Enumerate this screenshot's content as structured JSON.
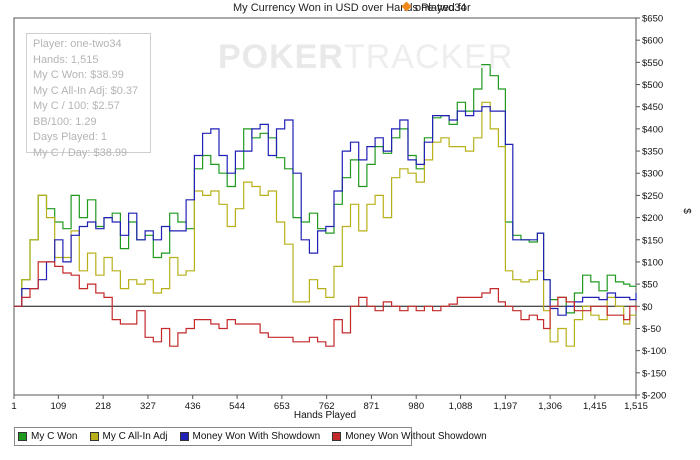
{
  "chart_data": {
    "type": "line",
    "title": "My Currency Won in USD over Hands Played for",
    "player": "one-two34",
    "xlabel": "Hands Played",
    "ylabel": "$",
    "xlim": [
      1,
      1515
    ],
    "ylim": [
      -200,
      650
    ],
    "x_ticks": [
      1,
      109,
      218,
      327,
      436,
      544,
      653,
      762,
      871,
      980,
      1088,
      1197,
      1306,
      1415,
      1515
    ],
    "x_tick_labels": [
      "1",
      "109",
      "218",
      "327",
      "436",
      "544",
      "653",
      "762",
      "871",
      "980",
      "1,088",
      "1,197",
      "1,306",
      "1,415",
      "1,515"
    ],
    "y_ticks": [
      -200,
      -150,
      -100,
      -50,
      0,
      50,
      100,
      150,
      200,
      250,
      300,
      350,
      400,
      450,
      500,
      550,
      600,
      650
    ],
    "y_tick_labels": [
      "$-200",
      "$-150",
      "$-100",
      "$-50",
      "$0",
      "$50",
      "$100",
      "$150",
      "$200",
      "$250",
      "$300",
      "$350",
      "$400",
      "$450",
      "$500",
      "$550",
      "$600",
      "$650"
    ],
    "series": [
      {
        "name": "My C Won",
        "color": "#1f9a1f",
        "x": [
          1,
          20,
          40,
          60,
          80,
          100,
          120,
          140,
          160,
          180,
          200,
          220,
          240,
          260,
          280,
          300,
          320,
          340,
          360,
          380,
          400,
          420,
          440,
          460,
          480,
          500,
          520,
          540,
          560,
          580,
          600,
          620,
          640,
          660,
          680,
          700,
          720,
          740,
          760,
          780,
          800,
          820,
          840,
          860,
          880,
          900,
          920,
          940,
          960,
          980,
          1000,
          1020,
          1040,
          1060,
          1080,
          1100,
          1120,
          1140,
          1160,
          1180,
          1197,
          1215,
          1235,
          1255,
          1275,
          1290,
          1306,
          1325,
          1345,
          1365,
          1385,
          1405,
          1425,
          1445,
          1465,
          1485,
          1500,
          1515
        ],
        "values": [
          0,
          60,
          150,
          250,
          220,
          190,
          175,
          250,
          200,
          240,
          180,
          200,
          210,
          130,
          190,
          150,
          160,
          110,
          120,
          210,
          190,
          175,
          310,
          340,
          320,
          300,
          270,
          310,
          400,
          380,
          390,
          380,
          335,
          310,
          200,
          190,
          210,
          175,
          165,
          230,
          290,
          330,
          270,
          320,
          360,
          345,
          380,
          400,
          340,
          310,
          380,
          425,
          430,
          410,
          460,
          440,
          490,
          545,
          520,
          490,
          190,
          160,
          150,
          145,
          165,
          60,
          15,
          20,
          -15,
          30,
          70,
          55,
          35,
          70,
          55,
          50,
          45,
          45
        ]
      },
      {
        "name": "My C All-In Adj",
        "color": "#b8b01a",
        "x": [
          1,
          20,
          40,
          60,
          80,
          100,
          120,
          140,
          160,
          180,
          200,
          220,
          240,
          260,
          280,
          300,
          320,
          340,
          360,
          380,
          400,
          420,
          440,
          460,
          480,
          500,
          520,
          540,
          560,
          580,
          600,
          620,
          640,
          660,
          680,
          700,
          720,
          740,
          760,
          780,
          800,
          820,
          840,
          860,
          880,
          900,
          920,
          940,
          960,
          980,
          1000,
          1020,
          1040,
          1060,
          1080,
          1100,
          1120,
          1140,
          1160,
          1180,
          1197,
          1215,
          1235,
          1255,
          1275,
          1290,
          1306,
          1325,
          1345,
          1365,
          1385,
          1405,
          1425,
          1445,
          1465,
          1485,
          1500,
          1515
        ],
        "values": [
          0,
          60,
          150,
          250,
          200,
          110,
          110,
          170,
          80,
          120,
          70,
          110,
          80,
          40,
          60,
          50,
          60,
          30,
          40,
          110,
          70,
          80,
          260,
          250,
          260,
          230,
          180,
          220,
          280,
          270,
          250,
          260,
          190,
          140,
          10,
          10,
          60,
          40,
          20,
          90,
          180,
          230,
          170,
          230,
          250,
          200,
          290,
          310,
          300,
          280,
          330,
          370,
          380,
          360,
          360,
          350,
          380,
          460,
          400,
          360,
          80,
          60,
          55,
          60,
          80,
          -10,
          -80,
          -50,
          -90,
          -30,
          0,
          -20,
          -30,
          20,
          0,
          -40,
          -20,
          -20
        ]
      },
      {
        "name": "Money Won With Showdown",
        "color": "#2121b5",
        "x": [
          1,
          20,
          40,
          60,
          80,
          100,
          120,
          140,
          160,
          180,
          200,
          220,
          240,
          260,
          280,
          300,
          320,
          340,
          360,
          380,
          400,
          420,
          440,
          460,
          480,
          500,
          520,
          540,
          560,
          580,
          600,
          620,
          640,
          660,
          680,
          700,
          720,
          740,
          760,
          780,
          800,
          820,
          840,
          860,
          880,
          900,
          920,
          940,
          960,
          980,
          1000,
          1020,
          1040,
          1060,
          1080,
          1100,
          1120,
          1140,
          1160,
          1180,
          1197,
          1215,
          1235,
          1255,
          1275,
          1290,
          1306,
          1325,
          1345,
          1365,
          1385,
          1405,
          1425,
          1445,
          1465,
          1485,
          1500,
          1515
        ],
        "values": [
          0,
          40,
          40,
          60,
          100,
          150,
          100,
          160,
          180,
          190,
          175,
          200,
          190,
          160,
          210,
          150,
          170,
          150,
          180,
          170,
          170,
          240,
          340,
          390,
          400,
          340,
          300,
          350,
          350,
          400,
          410,
          340,
          400,
          420,
          300,
          150,
          120,
          170,
          180,
          260,
          350,
          370,
          330,
          360,
          380,
          350,
          400,
          420,
          330,
          320,
          370,
          430,
          430,
          420,
          440,
          430,
          440,
          450,
          440,
          440,
          365,
          150,
          150,
          150,
          165,
          60,
          -5,
          -20,
          0,
          10,
          20,
          20,
          15,
          30,
          20,
          20,
          15,
          30
        ]
      },
      {
        "name": "Money Won Without Showdown",
        "color": "#c42a2a",
        "x": [
          1,
          20,
          40,
          60,
          80,
          100,
          120,
          140,
          160,
          180,
          200,
          220,
          240,
          260,
          280,
          300,
          320,
          340,
          360,
          380,
          400,
          420,
          440,
          460,
          480,
          500,
          520,
          540,
          560,
          580,
          600,
          620,
          640,
          660,
          680,
          700,
          720,
          740,
          760,
          780,
          800,
          820,
          840,
          860,
          880,
          900,
          920,
          940,
          960,
          980,
          1000,
          1020,
          1040,
          1060,
          1080,
          1100,
          1120,
          1140,
          1160,
          1180,
          1197,
          1215,
          1235,
          1255,
          1275,
          1290,
          1306,
          1325,
          1345,
          1365,
          1385,
          1405,
          1425,
          1445,
          1465,
          1485,
          1500,
          1515
        ],
        "values": [
          0,
          20,
          40,
          100,
          100,
          90,
          75,
          70,
          40,
          50,
          30,
          20,
          -30,
          -40,
          -40,
          -10,
          -70,
          -80,
          -50,
          -90,
          -60,
          -50,
          -30,
          -30,
          -40,
          -50,
          -30,
          -40,
          -40,
          -40,
          -60,
          -70,
          -70,
          -70,
          -80,
          -80,
          -70,
          -80,
          -90,
          -30,
          -60,
          0,
          20,
          0,
          -10,
          10,
          0,
          -10,
          0,
          -10,
          0,
          -10,
          0,
          5,
          20,
          20,
          20,
          30,
          40,
          10,
          0,
          -10,
          -30,
          -20,
          -30,
          -50,
          0,
          20,
          10,
          -10,
          -10,
          0,
          0,
          -20,
          -20,
          -30,
          0,
          -10
        ]
      }
    ]
  },
  "stats": {
    "player": "Player: one-two34",
    "hands": "Hands: 1,515",
    "won": "My C Won: $38.99",
    "allin": "My C All-In Adj: $0.37",
    "per100": "My C / 100: $2.57",
    "bb100": "BB/100: 1.29",
    "days": "Days Played: 1",
    "perday": "My C / Day: $38.99"
  },
  "watermark": {
    "part1": "POKER",
    "part2": "TRACKER"
  }
}
